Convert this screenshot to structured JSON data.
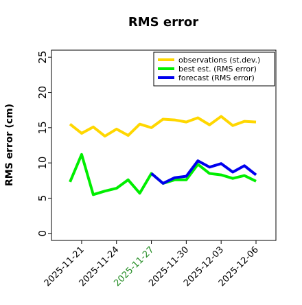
{
  "chart_data": {
    "type": "line",
    "title": "RMS error",
    "ylabel": "RMS error (cm)",
    "x": [
      "2025-11-20",
      "2025-11-21",
      "2025-11-22",
      "2025-11-23",
      "2025-11-24",
      "2025-11-25",
      "2025-11-26",
      "2025-11-27",
      "2025-11-28",
      "2025-11-29",
      "2025-11-30",
      "2025-12-01",
      "2025-12-02",
      "2025-12-03",
      "2025-12-04",
      "2025-12-05",
      "2025-12-06"
    ],
    "series": [
      {
        "name": "observations (st.dev.)",
        "color": "#ffd700",
        "values": [
          15.5,
          14.2,
          15.1,
          13.8,
          14.8,
          13.9,
          15.5,
          15.0,
          16.2,
          16.1,
          15.8,
          16.4,
          15.4,
          16.6,
          15.3,
          15.9,
          15.8
        ]
      },
      {
        "name": "best est. (RMS error)",
        "color": "#00ee00",
        "values": [
          7.3,
          11.2,
          5.5,
          6.0,
          6.4,
          7.6,
          5.7,
          8.5,
          7.1,
          7.6,
          7.6,
          9.8,
          8.5,
          8.3,
          7.8,
          8.2,
          7.4
        ]
      },
      {
        "name": "forecast (RMS error)",
        "color": "#0000ee",
        "values": [
          null,
          null,
          null,
          null,
          null,
          null,
          null,
          8.5,
          7.1,
          7.9,
          8.1,
          10.3,
          9.4,
          9.9,
          8.7,
          9.6,
          8.3
        ]
      }
    ],
    "ylim": [
      -1,
      26
    ],
    "yticks": [
      0,
      5,
      10,
      15,
      20,
      25
    ],
    "xticks": [
      "2025-11-21",
      "2025-11-24",
      "2025-11-27",
      "2025-11-30",
      "2025-12-03",
      "2025-12-06"
    ],
    "highlight_xtick": "2025-11-27",
    "highlight_color": "#228b22",
    "legend": "upper right"
  }
}
